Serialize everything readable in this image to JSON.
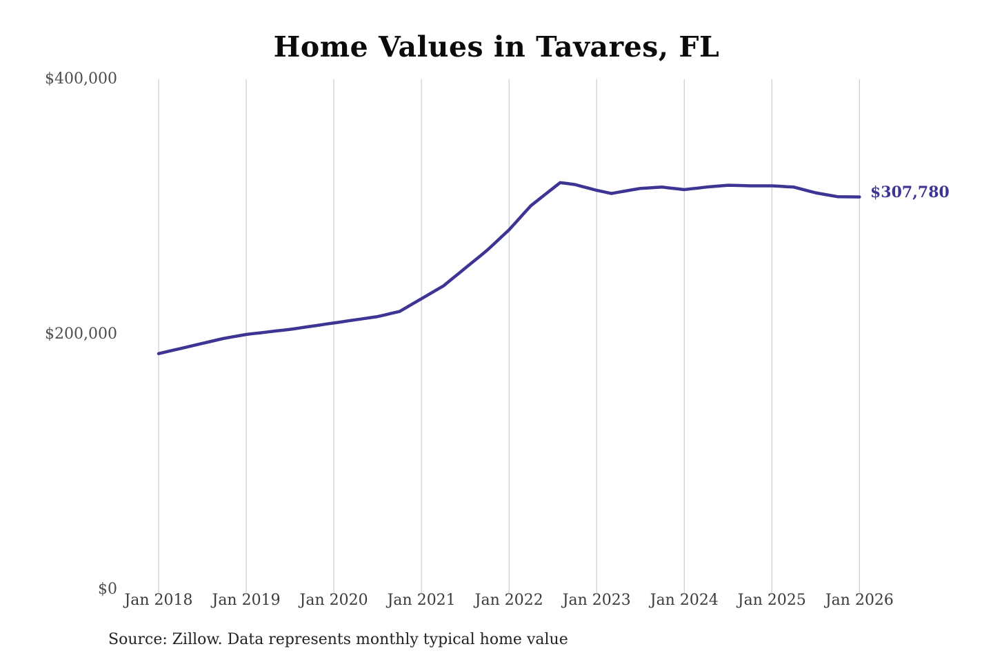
{
  "page": {
    "background": "#ffffff"
  },
  "chart_data": {
    "type": "line",
    "title": "Home Values in Tavares, FL",
    "source_note": "Source: Zillow. Data represents monthly typical home value",
    "series_name": "Monthly typical home value",
    "frequency": "monthly",
    "x_start": "Jan 2018",
    "x_end": "Jan 2026",
    "x_tick_labels": [
      "Jan 2018",
      "Jan 2019",
      "Jan 2020",
      "Jan 2021",
      "Jan 2022",
      "Jan 2023",
      "Jan 2024",
      "Jan 2025",
      "Jan 2026"
    ],
    "y_tick_labels": [
      "$0",
      "$200,000",
      "$400,000"
    ],
    "y_ticks": [
      0,
      200000,
      400000
    ],
    "ylim": [
      0,
      400000
    ],
    "grid": "vertical-only",
    "legend": "none",
    "end_label": "$307,780",
    "end_value": 307780,
    "line_color": "#3d3494",
    "grid_color": "#cccccc",
    "values": [
      185000,
      186300,
      187700,
      189000,
      190300,
      191700,
      193000,
      194300,
      195700,
      197000,
      198000,
      199000,
      200000,
      200700,
      201300,
      202000,
      202700,
      203300,
      204000,
      204800,
      205700,
      206500,
      207300,
      208200,
      209000,
      209800,
      210700,
      211500,
      212300,
      213200,
      214000,
      215300,
      216700,
      218000,
      221300,
      224700,
      228000,
      231300,
      234700,
      238000,
      242700,
      247300,
      252000,
      256700,
      261300,
      266000,
      271300,
      276700,
      282000,
      288300,
      294700,
      301000,
      305500,
      310000,
      314500,
      319000,
      318300,
      317500,
      316000,
      314500,
      313000,
      311800,
      310500,
      311500,
      312500,
      313500,
      314500,
      314800,
      315200,
      315500,
      314800,
      314200,
      313500,
      314200,
      314800,
      315500,
      316000,
      316500,
      317000,
      316800,
      316700,
      316500,
      316500,
      316500,
      316500,
      316200,
      315800,
      315500,
      314000,
      312500,
      311000,
      310000,
      309000,
      308000,
      307900,
      307850,
      307780
    ]
  }
}
